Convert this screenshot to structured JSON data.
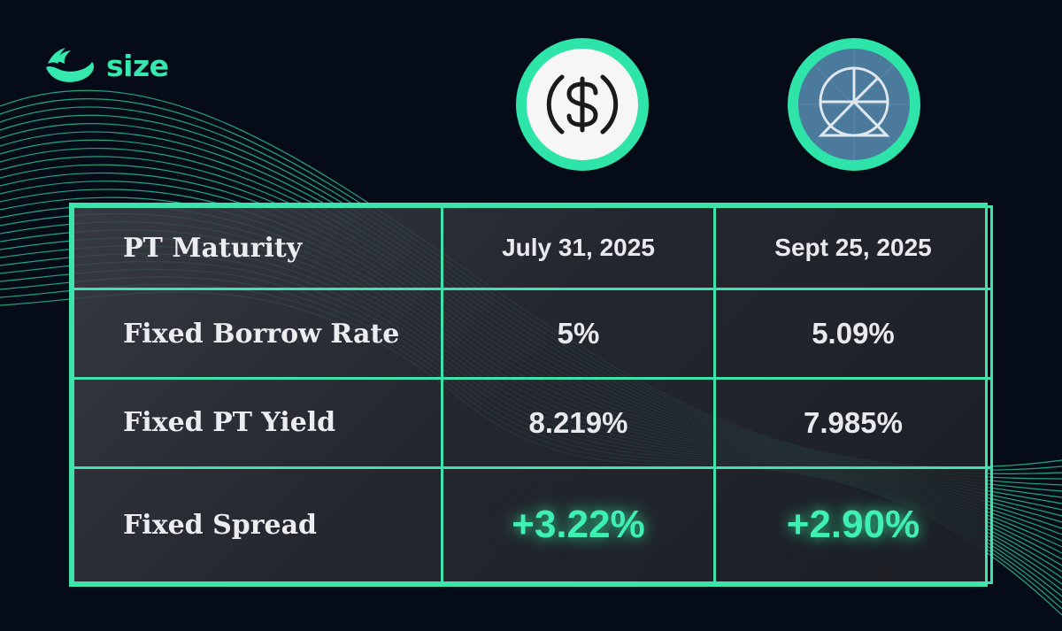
{
  "brand": {
    "name": "size",
    "accent_color": "#3ee3ab",
    "logo_icon": "size-wing-logo-icon"
  },
  "tokens": [
    {
      "name": "usdc-token-icon"
    },
    {
      "name": "ethena-token-icon"
    }
  ],
  "table": {
    "rows": [
      {
        "label": "PT Maturity",
        "values": [
          "July 31, 2025",
          "Sept 25, 2025"
        ]
      },
      {
        "label": "Fixed Borrow Rate",
        "values": [
          "5%",
          "5.09%"
        ]
      },
      {
        "label": "Fixed PT Yield",
        "values": [
          "8.219%",
          "7.985%"
        ]
      },
      {
        "label": "Fixed Spread",
        "values": [
          "+3.22%",
          "+2.90%"
        ]
      }
    ]
  }
}
